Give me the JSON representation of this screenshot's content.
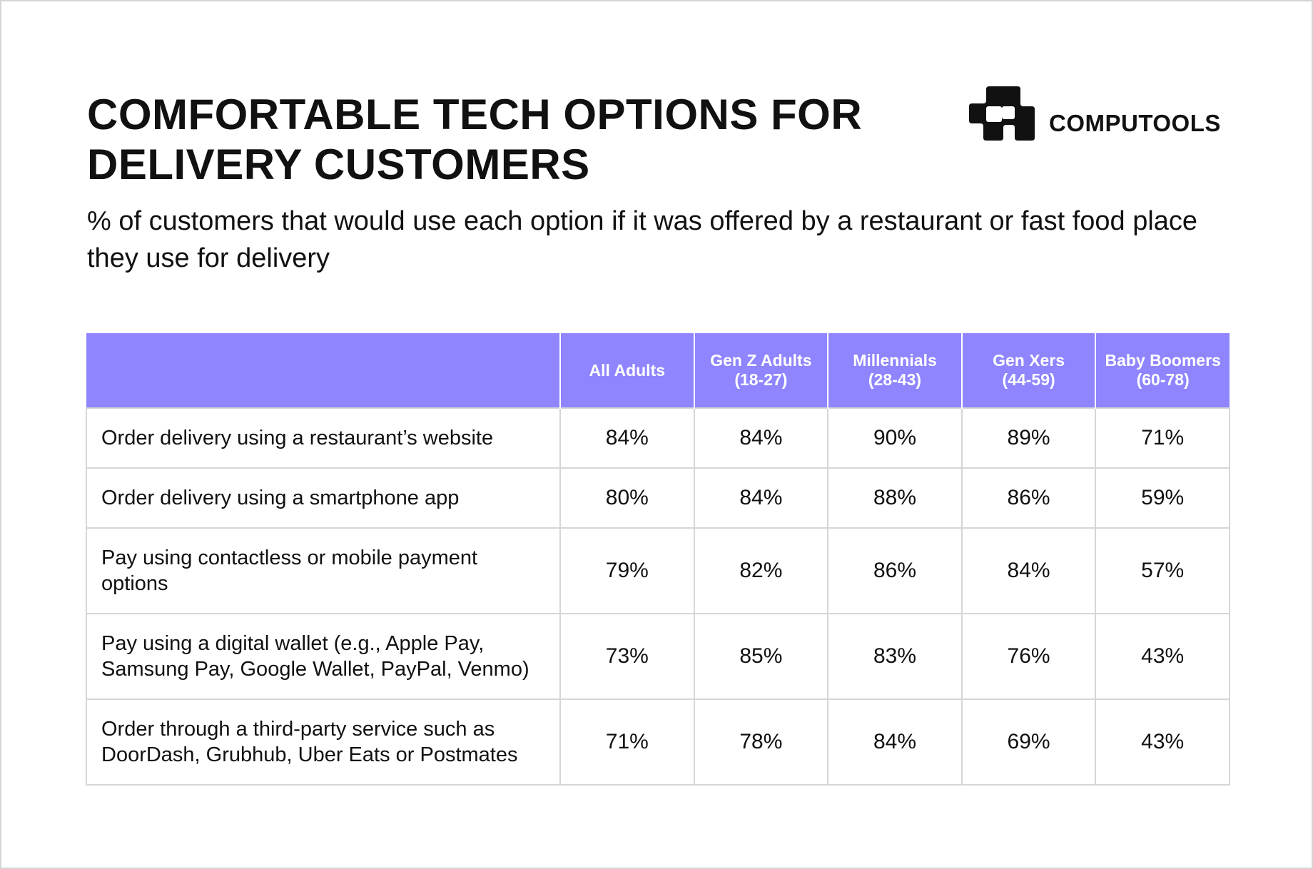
{
  "header": {
    "title": "COMFORTABLE TECH OPTIONS FOR DELIVERY CUSTOMERS",
    "subtitle": "% of customers that would use each option if it was offered by a restaurant or fast food place they use for delivery"
  },
  "brand": {
    "name": "COMPUTOOLS",
    "logo_icon": "computools-logo-icon"
  },
  "colors": {
    "header_bg": "#8f85ff",
    "header_text": "#ffffff",
    "grid": "#d6d6d6",
    "text": "#111111"
  },
  "chart_data": {
    "type": "table",
    "title": "COMFORTABLE TECH OPTIONS FOR DELIVERY CUSTOMERS",
    "subtitle": "% of customers that would use each option if it was offered by a restaurant or fast food place they use for delivery",
    "columns": [
      {
        "name": "All Adults",
        "range": ""
      },
      {
        "name": "Gen Z Adults",
        "range": "(18-27)"
      },
      {
        "name": "Millennials",
        "range": "(28-43)"
      },
      {
        "name": "Gen Xers",
        "range": "(44-59)"
      },
      {
        "name": "Baby Boomers",
        "range": "(60-78)"
      }
    ],
    "rows": [
      {
        "label": "Order delivery using a restaurant’s website",
        "values": [
          "84%",
          "84%",
          "90%",
          "89%",
          "71%"
        ]
      },
      {
        "label": "Order delivery using a smartphone app",
        "values": [
          "80%",
          "84%",
          "88%",
          "86%",
          "59%"
        ]
      },
      {
        "label": "Pay using contactless or mobile payment options",
        "values": [
          "79%",
          "82%",
          "86%",
          "84%",
          "57%"
        ]
      },
      {
        "label": "Pay using a digital wallet (e.g., Apple Pay, Samsung Pay, Google Wallet, PayPal, Venmo)",
        "values": [
          "73%",
          "85%",
          "83%",
          "76%",
          "43%"
        ]
      },
      {
        "label": "Order through a third-party service such as DoorDash, Grubhub, Uber Eats or Postmates",
        "values": [
          "71%",
          "78%",
          "84%",
          "69%",
          "43%"
        ]
      }
    ]
  }
}
